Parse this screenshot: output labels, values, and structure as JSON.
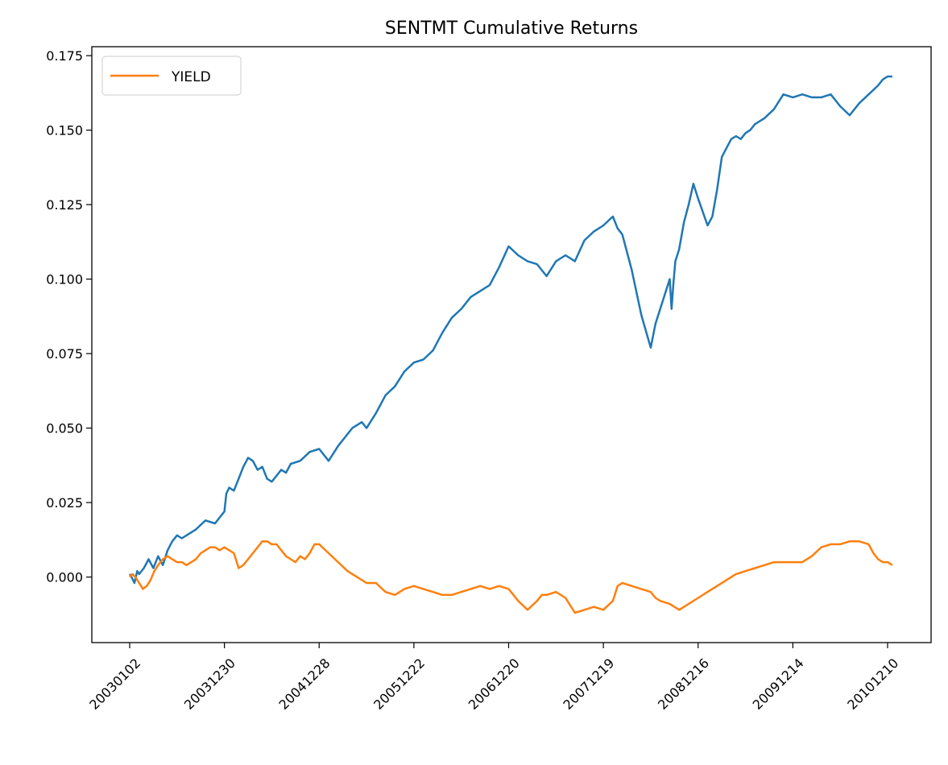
{
  "chart_data": {
    "type": "line",
    "title": "SENTMT Cumulative Returns",
    "xlabel": "",
    "ylabel": "",
    "x_ticks": [
      "20030102",
      "20031230",
      "20041228",
      "20051222",
      "20061220",
      "20071219",
      "20081216",
      "20091214",
      "20101210"
    ],
    "y_ticks": [
      "0.000",
      "0.025",
      "0.050",
      "0.075",
      "0.100",
      "0.125",
      "0.150",
      "0.175"
    ],
    "ylim": [
      -0.022,
      0.178
    ],
    "grid": false,
    "legend": {
      "position": "top-left",
      "entries": [
        "YIELD"
      ]
    },
    "series": [
      {
        "name": "",
        "color": "#1f77b4",
        "x": [
          0,
          0.02,
          0.05,
          0.08,
          0.1,
          0.15,
          0.2,
          0.25,
          0.3,
          0.35,
          0.4,
          0.45,
          0.5,
          0.55,
          0.6,
          0.7,
          0.8,
          0.9,
          1.0,
          1.02,
          1.05,
          1.1,
          1.15,
          1.2,
          1.25,
          1.3,
          1.35,
          1.4,
          1.45,
          1.5,
          1.55,
          1.6,
          1.65,
          1.7,
          1.8,
          1.9,
          2.0,
          2.1,
          2.2,
          2.35,
          2.45,
          2.5,
          2.6,
          2.7,
          2.8,
          2.9,
          3.0,
          3.1,
          3.2,
          3.3,
          3.4,
          3.5,
          3.6,
          3.7,
          3.8,
          3.9,
          4.0,
          4.1,
          4.2,
          4.3,
          4.4,
          4.5,
          4.6,
          4.7,
          4.8,
          4.9,
          5.0,
          5.1,
          5.15,
          5.2,
          5.3,
          5.4,
          5.5,
          5.55,
          5.6,
          5.65,
          5.7,
          5.72,
          5.74,
          5.76,
          5.8,
          5.85,
          5.9,
          5.95,
          6.0,
          6.1,
          6.15,
          6.2,
          6.25,
          6.3,
          6.35,
          6.4,
          6.45,
          6.5,
          6.55,
          6.6,
          6.7,
          6.8,
          6.9,
          7.0,
          7.1,
          7.2,
          7.3,
          7.4,
          7.5,
          7.6,
          7.7,
          7.8,
          7.9,
          7.95,
          8.0,
          8.05
        ],
        "values": [
          0.001,
          0.0,
          -0.002,
          0.002,
          0.001,
          0.003,
          0.006,
          0.003,
          0.007,
          0.004,
          0.009,
          0.012,
          0.014,
          0.013,
          0.014,
          0.016,
          0.019,
          0.018,
          0.022,
          0.028,
          0.03,
          0.029,
          0.033,
          0.037,
          0.04,
          0.039,
          0.036,
          0.037,
          0.033,
          0.032,
          0.034,
          0.036,
          0.035,
          0.038,
          0.039,
          0.042,
          0.043,
          0.039,
          0.044,
          0.05,
          0.052,
          0.05,
          0.055,
          0.061,
          0.064,
          0.069,
          0.072,
          0.073,
          0.076,
          0.082,
          0.087,
          0.09,
          0.094,
          0.096,
          0.098,
          0.104,
          0.111,
          0.108,
          0.106,
          0.105,
          0.101,
          0.106,
          0.108,
          0.106,
          0.113,
          0.116,
          0.118,
          0.121,
          0.117,
          0.115,
          0.103,
          0.088,
          0.077,
          0.085,
          0.09,
          0.095,
          0.1,
          0.09,
          0.099,
          0.106,
          0.11,
          0.119,
          0.125,
          0.132,
          0.127,
          0.118,
          0.121,
          0.13,
          0.141,
          0.144,
          0.147,
          0.148,
          0.147,
          0.149,
          0.15,
          0.152,
          0.154,
          0.157,
          0.162,
          0.161,
          0.162,
          0.161,
          0.161,
          0.162,
          0.158,
          0.155,
          0.159,
          0.162,
          0.165,
          0.167,
          0.168,
          0.168
        ]
      },
      {
        "name": "YIELD",
        "color": "#ff7f0e",
        "x": [
          0,
          0.03,
          0.06,
          0.1,
          0.14,
          0.18,
          0.22,
          0.26,
          0.3,
          0.35,
          0.4,
          0.45,
          0.5,
          0.55,
          0.6,
          0.65,
          0.7,
          0.75,
          0.8,
          0.85,
          0.9,
          0.95,
          1.0,
          1.05,
          1.1,
          1.15,
          1.2,
          1.25,
          1.3,
          1.35,
          1.4,
          1.45,
          1.5,
          1.55,
          1.6,
          1.65,
          1.7,
          1.75,
          1.8,
          1.85,
          1.9,
          1.95,
          2.0,
          2.1,
          2.2,
          2.3,
          2.4,
          2.5,
          2.6,
          2.7,
          2.8,
          2.9,
          3.0,
          3.1,
          3.2,
          3.3,
          3.4,
          3.5,
          3.6,
          3.7,
          3.8,
          3.9,
          4.0,
          4.1,
          4.2,
          4.3,
          4.35,
          4.4,
          4.5,
          4.6,
          4.7,
          4.8,
          4.9,
          5.0,
          5.1,
          5.15,
          5.2,
          5.3,
          5.4,
          5.5,
          5.55,
          5.6,
          5.7,
          5.8,
          5.9,
          6.0,
          6.1,
          6.2,
          6.3,
          6.4,
          6.5,
          6.6,
          6.7,
          6.8,
          6.9,
          7.0,
          7.1,
          7.2,
          7.3,
          7.4,
          7.5,
          7.6,
          7.7,
          7.8,
          7.85,
          7.9,
          7.95,
          8.0,
          8.05
        ],
        "values": [
          0.0,
          0.001,
          0.0,
          -0.002,
          -0.004,
          -0.003,
          -0.001,
          0.002,
          0.004,
          0.006,
          0.007,
          0.006,
          0.005,
          0.005,
          0.004,
          0.005,
          0.006,
          0.008,
          0.009,
          0.01,
          0.01,
          0.009,
          0.01,
          0.009,
          0.008,
          0.003,
          0.004,
          0.006,
          0.008,
          0.01,
          0.012,
          0.012,
          0.011,
          0.011,
          0.009,
          0.007,
          0.006,
          0.005,
          0.007,
          0.006,
          0.008,
          0.011,
          0.011,
          0.008,
          0.005,
          0.002,
          0.0,
          -0.002,
          -0.002,
          -0.005,
          -0.006,
          -0.004,
          -0.003,
          -0.004,
          -0.005,
          -0.006,
          -0.006,
          -0.005,
          -0.004,
          -0.003,
          -0.004,
          -0.003,
          -0.004,
          -0.008,
          -0.011,
          -0.008,
          -0.006,
          -0.006,
          -0.005,
          -0.007,
          -0.012,
          -0.011,
          -0.01,
          -0.011,
          -0.008,
          -0.003,
          -0.002,
          -0.003,
          -0.004,
          -0.005,
          -0.007,
          -0.008,
          -0.009,
          -0.011,
          -0.009,
          -0.007,
          -0.005,
          -0.003,
          -0.001,
          0.001,
          0.002,
          0.003,
          0.004,
          0.005,
          0.005,
          0.005,
          0.005,
          0.007,
          0.01,
          0.011,
          0.011,
          0.012,
          0.012,
          0.011,
          0.008,
          0.006,
          0.005,
          0.005,
          0.004
        ]
      }
    ]
  }
}
